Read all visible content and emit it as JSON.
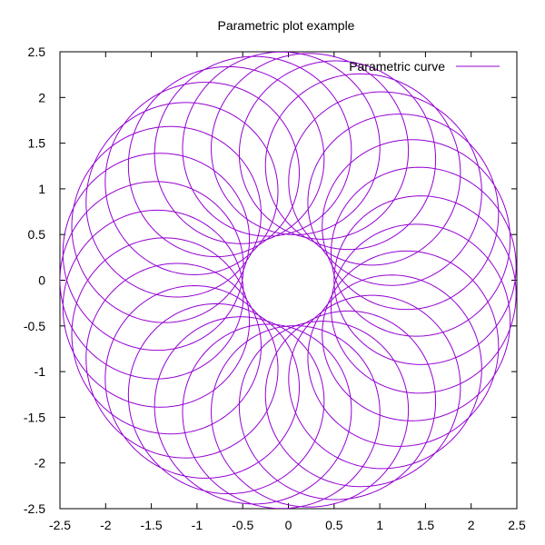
{
  "chart_data": {
    "type": "line",
    "title": "Parametric plot example",
    "xlabel": "",
    "ylabel": "",
    "xlim": [
      -2.5,
      2.5
    ],
    "ylim": [
      -2.5,
      2.5
    ],
    "xticks": [
      -2.5,
      -2,
      -1.5,
      -1,
      -0.5,
      0,
      0.5,
      1,
      1.5,
      2,
      2.5
    ],
    "yticks": [
      -2.5,
      -2,
      -1.5,
      -1,
      -0.5,
      0,
      0.5,
      1,
      1.5,
      2,
      2.5
    ],
    "xtick_labels": [
      "-2.5",
      "-2",
      "-1.5",
      "-1",
      "-0.5",
      "0",
      "0.5",
      "1",
      "1.5",
      "2",
      "2.5"
    ],
    "ytick_labels": [
      "-2.5",
      "-2",
      "-1.5",
      "-1",
      "-0.5",
      "0",
      "0.5",
      "1",
      "1.5",
      "2",
      "2.5"
    ],
    "grid": false,
    "legend_position": "top-right",
    "series": [
      {
        "name": "Parametric curve",
        "color": "#9400d3",
        "parametric": {
          "x_equation": "1.5*cos(t) - cos(30*t)",
          "y_equation": "1.5*sin(t) - sin(30*t)",
          "t_range": [
            0,
            6.283185307
          ]
        }
      }
    ]
  }
}
